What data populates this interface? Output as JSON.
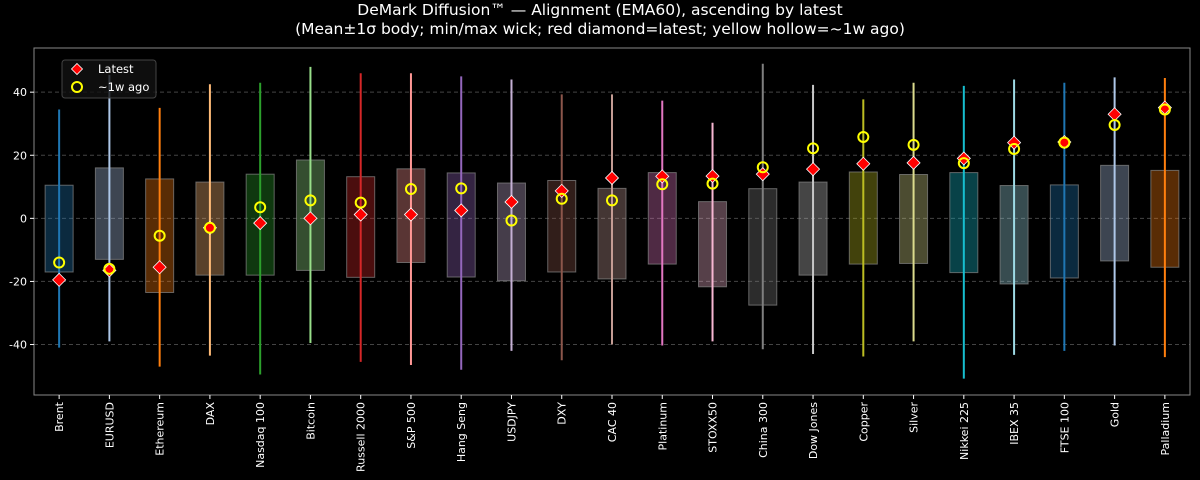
{
  "chart_data": {
    "type": "box-range",
    "title": "DeMark Diffusion™ — Alignment (EMA60), ascending by latest",
    "subtitle": "(Mean±1σ body; min/max wick; red diamond=latest; yellow hollow=~1w ago)",
    "xlabel": "",
    "ylabel": "",
    "ylim": [
      -56,
      54
    ],
    "yticks": [
      -40,
      -20,
      0,
      20,
      40
    ],
    "grid": "horizontal dashed",
    "legend": {
      "placement": "top-left",
      "entries": [
        "Latest",
        "~1w ago"
      ]
    },
    "latest_color": "#ff0000",
    "week_ago_color": "#ffff00",
    "categories": [
      "Brent",
      "EURUSD",
      "Ethereum",
      "DAX",
      "Nasdaq 100",
      "Bitcoin",
      "Russell 2000",
      "S&P 500",
      "Hang Seng",
      "USDJPY",
      "DXY",
      "CAC 40",
      "Platinum",
      "STOXX50",
      "China 300",
      "Dow Jones",
      "Copper",
      "Silver",
      "Nikkei 225",
      "IBEX 35",
      "FTSE 100",
      "Gold",
      "Palladium"
    ],
    "colors": [
      "#1f77b4",
      "#aec7e8",
      "#ff7f0e",
      "#ffbb78",
      "#2ca02c",
      "#98df8a",
      "#d62728",
      "#ff9896",
      "#9467bd",
      "#c5b0d5",
      "#8c564b",
      "#c49c94",
      "#e377c2",
      "#f7b6d2",
      "#7f7f7f",
      "#c7c7c7",
      "#bcbd22",
      "#dbdb8d",
      "#17becf",
      "#9edae5",
      "#1f77b4",
      "#aec7e8",
      "#ff7f0e"
    ],
    "body_high": [
      10.5,
      16,
      12.5,
      11.5,
      14,
      18.5,
      13.2,
      15.7,
      14.4,
      11.2,
      12,
      9.5,
      14.5,
      5.3,
      9.4,
      11.5,
      14.7,
      13.9,
      14.5,
      10.4,
      10.6,
      16.8,
      15.2
    ],
    "body_low": [
      -17,
      -13,
      -23.5,
      -18,
      -18,
      -16.5,
      -18.7,
      -14,
      -18.6,
      -19.8,
      -17,
      -19.2,
      -14.5,
      -21.7,
      -27.5,
      -18,
      -14.5,
      -14.3,
      -17.2,
      -20.8,
      -18.9,
      -13.5,
      -15.5
    ],
    "wick_max": [
      34.5,
      45.5,
      35,
      42.5,
      43,
      48,
      46,
      46,
      45,
      44,
      39.3,
      39.3,
      37.3,
      30.3,
      49,
      42.3,
      37.7,
      43,
      42,
      44,
      43,
      44.7,
      44.5
    ],
    "wick_min": [
      -41,
      -39,
      -47,
      -43.5,
      -49.5,
      -39.5,
      -45.5,
      -46.5,
      -48,
      -42,
      -45,
      -40,
      -40.3,
      -39,
      -41.5,
      -43,
      -43.8,
      -39,
      -50.8,
      -43.3,
      -42,
      -40.3,
      -44
    ],
    "latest": [
      -19.5,
      -16.5,
      -15.5,
      -3,
      -1.5,
      0,
      1.2,
      1.2,
      2.5,
      5.2,
      8.7,
      12.8,
      13.3,
      13.4,
      14,
      15.6,
      17.3,
      17.6,
      19,
      24,
      24.2,
      33,
      35.1
    ],
    "week_ago": [
      -14,
      -16,
      -5.5,
      -3,
      3.5,
      5.7,
      5,
      9.3,
      9.5,
      -0.7,
      6.2,
      5.7,
      10.8,
      11,
      16.2,
      22.2,
      25.8,
      23.3,
      17.5,
      22,
      24,
      29.6,
      34.5
    ]
  }
}
